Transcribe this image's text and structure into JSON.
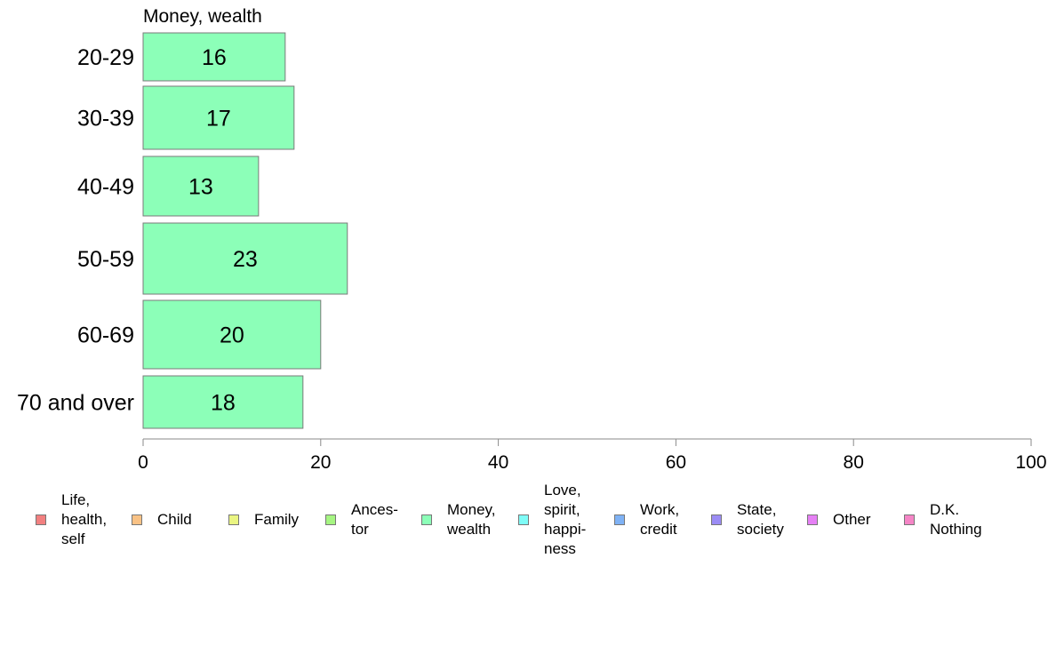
{
  "chart_data": {
    "type": "bar",
    "orientation": "horizontal",
    "title": "Money, wealth",
    "categories": [
      "20-29",
      "30-39",
      "40-49",
      "50-59",
      "60-69",
      "70 and over"
    ],
    "values": [
      16,
      17,
      13,
      23,
      20,
      18
    ],
    "xlim": [
      0,
      100
    ],
    "xticks": [
      "0",
      "20",
      "40",
      "60",
      "80",
      "100"
    ],
    "bar_color": "#8cffb8",
    "grid": false,
    "legend_position": "bottom"
  },
  "legend": [
    {
      "label": "Life,\nhealth,\nself",
      "color": "#f28080"
    },
    {
      "label": "Child",
      "color": "#f9c285"
    },
    {
      "label": "Family",
      "color": "#eaf582"
    },
    {
      "label": "Ances-\ntor",
      "color": "#a6f582"
    },
    {
      "label": "Money,\nwealth",
      "color": "#8cffb8"
    },
    {
      "label": "Love,\nspirit,\nhappi-\nness",
      "color": "#7ffcf7"
    },
    {
      "label": "Work,\ncredit",
      "color": "#7fb2f5"
    },
    {
      "label": "State,\nsociety",
      "color": "#9b8cf5"
    },
    {
      "label": "Other",
      "color": "#e680f5"
    },
    {
      "label": "D.K.\nNothing",
      "color": "#f585c6"
    }
  ]
}
